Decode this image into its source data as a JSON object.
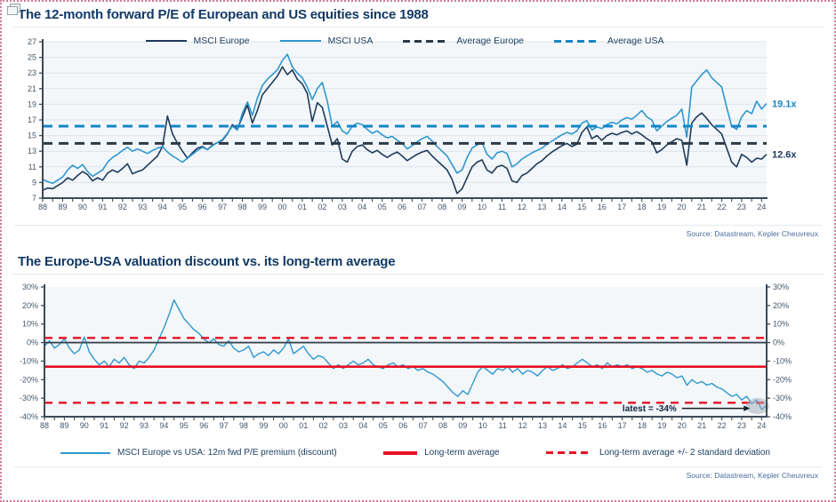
{
  "panel1": {
    "source": "Source: Datastream, Kepler Cheuvreux"
  },
  "panel2": {
    "source": "Source: Datastream, Kepler Cheuvreux"
  },
  "chart_data": [
    {
      "type": "line",
      "title": "The 12-month forward P/E of European and US equities since 1988",
      "x_start": 1988,
      "x_step": 0.25,
      "x_ticks": [
        "88",
        "89",
        "90",
        "91",
        "92",
        "93",
        "94",
        "95",
        "96",
        "97",
        "98",
        "99",
        "00",
        "01",
        "02",
        "03",
        "04",
        "05",
        "06",
        "07",
        "08",
        "09",
        "10",
        "11",
        "12",
        "13",
        "14",
        "15",
        "16",
        "17",
        "18",
        "19",
        "20",
        "21",
        "22",
        "23",
        "24"
      ],
      "ylim": [
        7,
        27
      ],
      "y_ticks": [
        27,
        25,
        23,
        21,
        19,
        17,
        15,
        13,
        11,
        9,
        7
      ],
      "y_tick_labels": [
        "27",
        "25",
        "23",
        "21",
        "19",
        "17",
        "15",
        "13",
        "11",
        "9",
        "7"
      ],
      "grid": true,
      "legend_position": "top",
      "series": [
        {
          "name": "MSCI Europe",
          "color": "#203a5c",
          "width": 1.6,
          "values": [
            8.0,
            8.3,
            8.2,
            8.6,
            9.0,
            9.6,
            9.3,
            9.9,
            10.4,
            10.0,
            9.2,
            9.6,
            9.3,
            10.2,
            10.6,
            10.3,
            10.8,
            11.4,
            10.1,
            10.4,
            10.6,
            11.2,
            11.8,
            12.4,
            13.6,
            17.5,
            15.2,
            14.0,
            13.0,
            12.1,
            12.8,
            13.4,
            13.6,
            13.2,
            13.8,
            14.1,
            14.4,
            15.2,
            16.4,
            15.8,
            17.4,
            18.9,
            16.6,
            18.2,
            20.2,
            21.0,
            21.8,
            22.6,
            23.8,
            22.8,
            23.4,
            22.2,
            21.6,
            20.4,
            16.8,
            19.2,
            18.6,
            16.2,
            13.8,
            14.6,
            12.0,
            11.6,
            13.0,
            13.6,
            13.8,
            13.2,
            12.8,
            13.1,
            12.6,
            12.2,
            12.6,
            12.9,
            12.4,
            11.8,
            12.2,
            12.6,
            12.9,
            13.1,
            12.4,
            11.8,
            11.2,
            10.6,
            9.4,
            7.6,
            8.2,
            9.6,
            11.0,
            11.6,
            11.9,
            10.6,
            10.2,
            11.0,
            11.2,
            10.8,
            9.2,
            9.0,
            9.9,
            10.2,
            10.8,
            11.4,
            11.8,
            12.4,
            12.9,
            13.3,
            13.7,
            14.0,
            13.6,
            13.9,
            15.4,
            16.1,
            14.6,
            15.0,
            14.4,
            15.0,
            15.3,
            15.1,
            15.4,
            15.6,
            15.2,
            15.5,
            15.1,
            14.6,
            14.2,
            12.8,
            13.2,
            13.8,
            14.2,
            14.6,
            14.4,
            11.2,
            16.6,
            17.4,
            17.9,
            17.2,
            16.4,
            15.8,
            15.2,
            13.4,
            11.6,
            11.0,
            12.6,
            12.2,
            11.6,
            12.1,
            12.0,
            12.6
          ]
        },
        {
          "name": "MSCI USA",
          "color": "#2f97cf",
          "width": 1.6,
          "values": [
            9.4,
            9.1,
            8.9,
            9.3,
            9.7,
            10.6,
            11.2,
            10.8,
            11.3,
            10.4,
            9.8,
            10.2,
            10.6,
            11.6,
            12.2,
            12.6,
            13.1,
            13.5,
            13.0,
            13.3,
            13.0,
            12.7,
            13.1,
            13.4,
            13.6,
            12.9,
            12.4,
            12.0,
            11.6,
            12.1,
            12.6,
            13.1,
            13.5,
            13.2,
            13.7,
            14.1,
            14.5,
            15.3,
            16.2,
            15.7,
            17.9,
            19.3,
            17.6,
            19.8,
            21.4,
            22.2,
            22.8,
            23.4,
            24.6,
            25.4,
            23.8,
            23.0,
            22.4,
            21.2,
            19.6,
            21.0,
            21.8,
            19.4,
            16.2,
            16.8,
            15.6,
            15.2,
            16.2,
            16.6,
            16.4,
            15.8,
            15.3,
            15.6,
            15.1,
            14.7,
            14.9,
            14.4,
            14.0,
            13.3,
            13.7,
            14.2,
            14.6,
            14.9,
            14.3,
            13.6,
            13.0,
            12.4,
            11.3,
            10.2,
            10.6,
            12.2,
            13.4,
            13.8,
            14.1,
            12.6,
            12.0,
            12.8,
            13.0,
            12.7,
            11.0,
            11.4,
            12.0,
            12.4,
            12.8,
            13.1,
            13.4,
            13.9,
            14.3,
            14.7,
            15.1,
            15.4,
            15.2,
            15.6,
            16.6,
            16.9,
            15.7,
            16.1,
            15.9,
            16.4,
            16.7,
            16.5,
            17.0,
            17.3,
            17.1,
            17.6,
            18.2,
            17.4,
            17.0,
            15.6,
            16.2,
            16.8,
            17.2,
            17.6,
            18.4,
            14.8,
            21.2,
            22.0,
            22.8,
            23.4,
            22.4,
            21.8,
            21.2,
            18.6,
            16.2,
            15.8,
            17.4,
            18.2,
            17.8,
            19.4,
            18.4,
            19.1
          ]
        }
      ],
      "ref_lines": [
        {
          "name": "Average Europe",
          "color": "#2c3a47",
          "dash": "11 7",
          "width": 3,
          "y": 14.0
        },
        {
          "name": "Average USA",
          "color": "#1486c8",
          "dash": "11 7",
          "width": 3,
          "y": 16.2
        }
      ],
      "legend": [
        {
          "label": "MSCI Europe",
          "color": "#203a5c",
          "style": "solid"
        },
        {
          "label": "MSCI USA",
          "color": "#2f97cf",
          "style": "solid"
        },
        {
          "label": "Average Europe",
          "color": "#2c3a47",
          "style": "dashed"
        },
        {
          "label": "Average USA",
          "color": "#1486c8",
          "style": "dashed"
        }
      ],
      "end_labels": [
        {
          "text": "19.1x",
          "color": "#1486c8",
          "y": 19.1
        },
        {
          "text": "12.6x",
          "color": "#203a5c",
          "y": 12.6
        }
      ]
    },
    {
      "type": "line",
      "title": "The Europe-USA valuation discount vs. its long-term average",
      "x_start": 1988,
      "x_step": 0.25,
      "x_ticks": [
        "88",
        "89",
        "90",
        "91",
        "92",
        "93",
        "94",
        "95",
        "96",
        "97",
        "98",
        "99",
        "00",
        "01",
        "02",
        "03",
        "04",
        "05",
        "06",
        "07",
        "08",
        "09",
        "10",
        "11",
        "12",
        "13",
        "14",
        "15",
        "16",
        "17",
        "18",
        "19",
        "20",
        "21",
        "22",
        "23",
        "24"
      ],
      "ylim": [
        -40,
        30
      ],
      "y_ticks": [
        30,
        20,
        10,
        0,
        -10,
        -20,
        -30,
        -40
      ],
      "y_tick_labels": [
        "30%",
        "20%",
        "10%",
        "0%",
        "-10%",
        "-20%",
        "-30%",
        "-40%"
      ],
      "grid": false,
      "right_axis": true,
      "zero_line": true,
      "series": [
        {
          "name": "MSCI Europe vs USA: 12m fwd P/E premium (discount)",
          "color": "#2f97cf",
          "width": 1.4,
          "values": [
            -2,
            1,
            -3,
            -1,
            2,
            -3,
            -6,
            -4,
            3,
            -5,
            -9,
            -12,
            -10,
            -13,
            -9,
            -11,
            -8,
            -12,
            -14,
            -10,
            -11,
            -8,
            -4,
            2,
            8,
            15,
            23,
            18,
            13,
            10,
            7,
            5,
            2,
            0,
            2,
            -1,
            -2,
            1,
            -3,
            -5,
            -4,
            -2,
            -8,
            -6,
            -5,
            -7,
            -4,
            -6,
            -3,
            2,
            -6,
            -4,
            -2,
            -6,
            -9,
            -7,
            -8,
            -11,
            -14,
            -12,
            -14,
            -12,
            -10,
            -12,
            -11,
            -9,
            -12,
            -13,
            -14,
            -12,
            -11,
            -13,
            -12,
            -14,
            -13,
            -15,
            -14,
            -16,
            -17,
            -19,
            -21,
            -24,
            -27,
            -29,
            -26,
            -28,
            -22,
            -16,
            -13,
            -15,
            -17,
            -14,
            -15,
            -13,
            -16,
            -14,
            -17,
            -15,
            -16,
            -18,
            -15,
            -13,
            -15,
            -14,
            -12,
            -14,
            -13,
            -11,
            -9,
            -11,
            -13,
            -12,
            -14,
            -11,
            -13,
            -12,
            -13,
            -12,
            -14,
            -13,
            -14,
            -16,
            -15,
            -17,
            -18,
            -16,
            -17,
            -19,
            -18,
            -23,
            -20,
            -22,
            -21,
            -23,
            -22,
            -24,
            -25,
            -27,
            -29,
            -28,
            -31,
            -29,
            -33,
            -31,
            -36,
            -34
          ]
        }
      ],
      "ref_lines": [
        {
          "name": "Long-term average +2 std dev",
          "color": "#e81123",
          "dash": "9 7",
          "width": 2.4,
          "y": 2.5
        },
        {
          "name": "Long-term average",
          "color": "#e81123",
          "dash": null,
          "width": 2.6,
          "y": -13
        },
        {
          "name": "Long-term average -2 std dev",
          "color": "#e81123",
          "dash": "9 7",
          "width": 2.4,
          "y": -32.5
        }
      ],
      "legend": [
        {
          "label": "MSCI Europe vs USA: 12m fwd P/E premium (discount)",
          "color": "#2f97cf",
          "style": "solid-thin"
        },
        {
          "label": "Long-term average",
          "color": "#e81123",
          "style": "solid-thick"
        },
        {
          "label": "Long-term average +/- 2 standard deviation",
          "color": "#e81123",
          "style": "dashed"
        }
      ],
      "annotation": {
        "text": "latest = -34%",
        "latest_value": -34,
        "arrow_x1": 2020.0,
        "arrow_x2": 2023.1,
        "arrow_y": -35.5,
        "ellipse_x": 2023.8,
        "ellipse_y": -34.2
      }
    }
  ]
}
